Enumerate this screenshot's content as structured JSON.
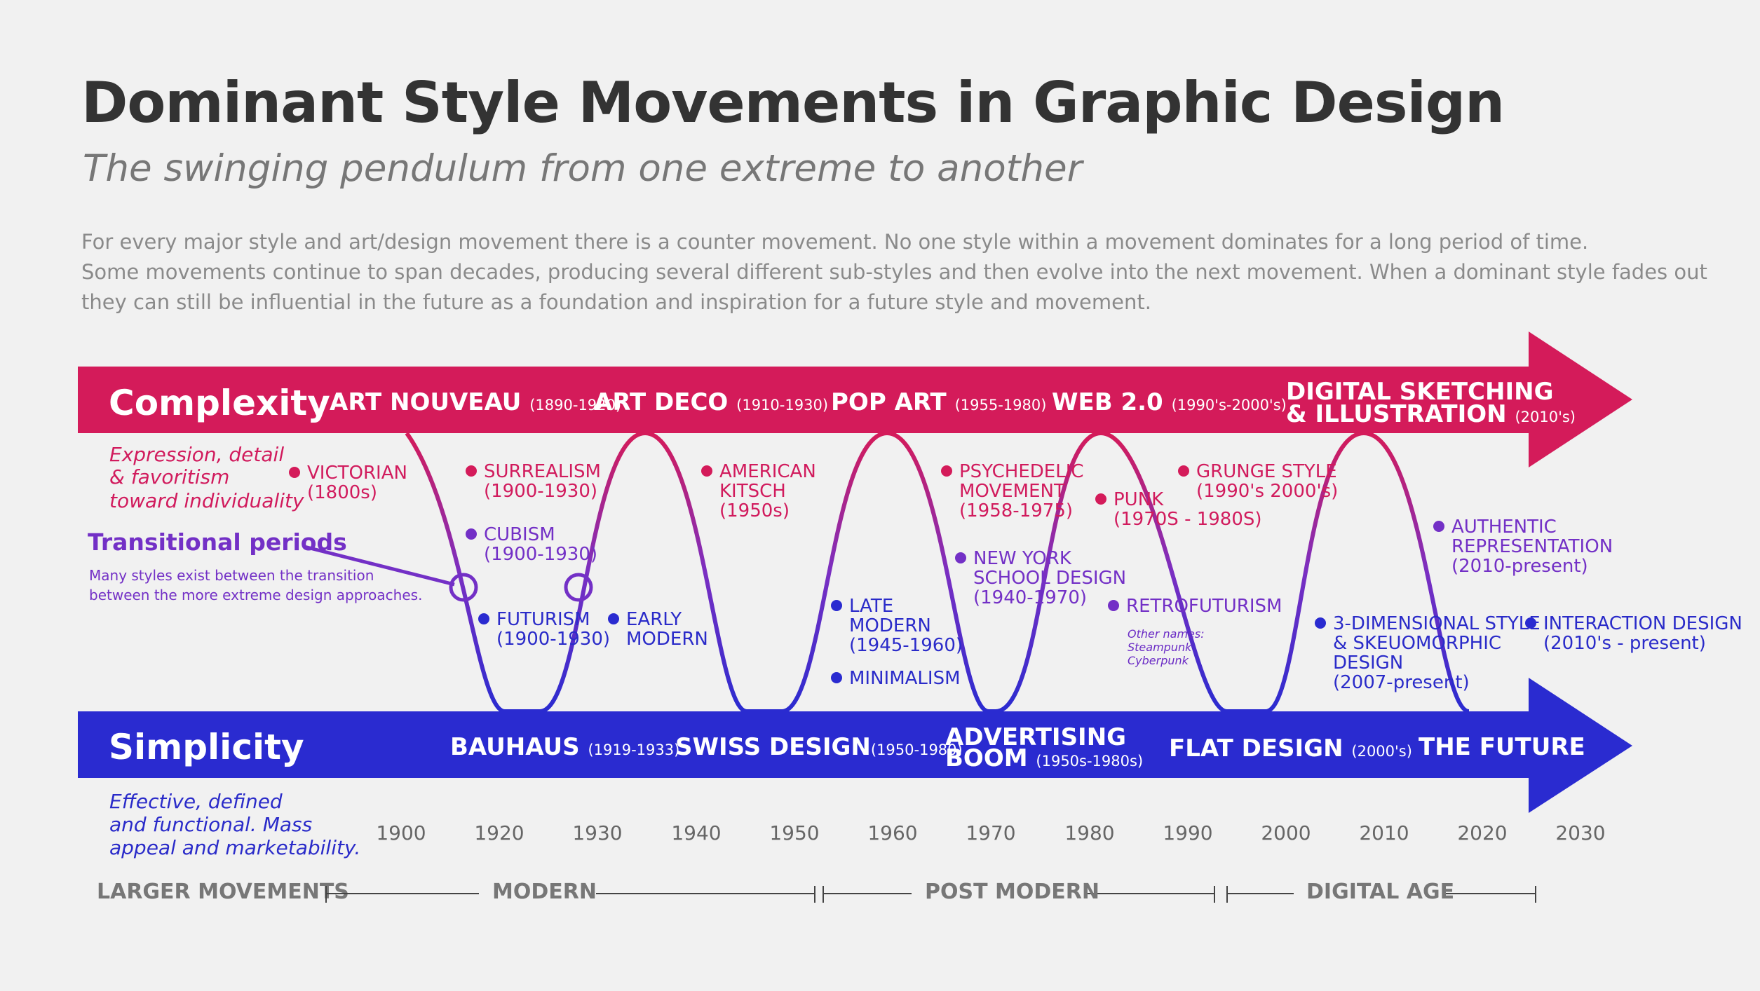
{
  "title": "Dominant Style Movements in Graphic Design",
  "subtitle": "The swinging pendulum from one extreme to another",
  "intro": [
    "For every major style and art/design movement there is a counter movement. No one style within a movement dominates for a long period of time.",
    "Some movements continue to span decades, producing several different sub-styles and then evolve into the next movement. When a dominant style fades out",
    "they can still be influential in the future as a foundation and inspiration for a future style and movement."
  ],
  "complexity": {
    "label": "Complexity",
    "desc": [
      "Expression, detail",
      "& favoritism",
      "toward individuality"
    ],
    "movements": [
      {
        "name": "ART NOUVEAU",
        "years": "(1890-1920)"
      },
      {
        "name": "ART DECO",
        "years": "(1910-1930)"
      },
      {
        "name": "POP ART",
        "years": "(1955-1980)"
      },
      {
        "name": "WEB 2.0",
        "years": "(1990's-2000's)"
      },
      {
        "name": "DIGITAL SKETCHING",
        "name2": "& ILLUSTRATION",
        "years": "(2010's)"
      }
    ]
  },
  "simplicity": {
    "label": "Simplicity",
    "desc": [
      "Effective, defined",
      "and functional. Mass",
      "appeal and marketability."
    ],
    "movements": [
      {
        "name": "BAUHAUS",
        "years": "(1919-1933)"
      },
      {
        "name": "SWISS DESIGN",
        "years": "(1950-1980)"
      },
      {
        "name": "ADVERTISING",
        "name2": "BOOM",
        "years": "(1950s-1980s)"
      },
      {
        "name": "FLAT DESIGN",
        "years": "(2000's)"
      },
      {
        "name": "THE FUTURE",
        "years": ""
      }
    ]
  },
  "transitional": {
    "label": "Transitional periods",
    "desc": [
      "Many styles exist between the transition",
      "between the more extreme design approaches."
    ]
  },
  "styles": [
    {
      "lines": [
        "VICTORIAN",
        "(1800s)"
      ],
      "tone": "mag"
    },
    {
      "lines": [
        "SURREALISM",
        "(1900-1930)"
      ],
      "tone": "mag"
    },
    {
      "lines": [
        "CUBISM",
        "(1900-1930)"
      ],
      "tone": "pur"
    },
    {
      "lines": [
        "FUTURISM",
        "(1900-1930)"
      ],
      "tone": "blu"
    },
    {
      "lines": [
        "EARLY",
        "MODERN"
      ],
      "tone": "blu"
    },
    {
      "lines": [
        "AMERICAN",
        "KITSCH",
        "(1950s)"
      ],
      "tone": "mag"
    },
    {
      "lines": [
        "LATE",
        "MODERN",
        "(1945-1960)"
      ],
      "tone": "blu"
    },
    {
      "lines": [
        "MINIMALISM"
      ],
      "tone": "blu"
    },
    {
      "lines": [
        "PSYCHEDELIC",
        "MOVEMENT",
        "(1958-1975)"
      ],
      "tone": "mag"
    },
    {
      "lines": [
        "NEW YORK",
        "SCHOOL DESIGN",
        "(1940-1970)"
      ],
      "tone": "pur"
    },
    {
      "lines": [
        "PUNK",
        "(1970S - 1980S)"
      ],
      "tone": "mag"
    },
    {
      "lines": [
        "GRUNGE STYLE",
        "(1990's 2000's)"
      ],
      "tone": "mag"
    },
    {
      "lines": [
        "RETROFUTURISM"
      ],
      "tone": "pur"
    },
    {
      "lines": [
        "AUTHENTIC",
        "REPRESENTATION",
        "(2010-present)"
      ],
      "tone": "pur"
    },
    {
      "lines": [
        "3-DIMENSIONAL STYLE",
        "& SKEUOMORPHIC",
        "DESIGN",
        "(2007-present)"
      ],
      "tone": "blu"
    },
    {
      "lines": [
        "INTERACTION DESIGN",
        "(2010's - present)"
      ],
      "tone": "blu"
    }
  ],
  "retro_other": [
    "Other names:",
    "Steampunk",
    "Cyberpunk"
  ],
  "timeline": [
    "1900",
    "1920",
    "1930",
    "1940",
    "1950",
    "1960",
    "1970",
    "1980",
    "1990",
    "2000",
    "2010",
    "2020",
    "2030"
  ],
  "larger_movements": {
    "label": "LARGER MOVEMENTS",
    "eras": [
      "MODERN",
      "POST MODERN",
      "DIGITAL AGE"
    ]
  },
  "colors": {
    "complexity": "#d41b5a",
    "simplicity": "#2a2bd0",
    "transitional": "#7330c6"
  }
}
